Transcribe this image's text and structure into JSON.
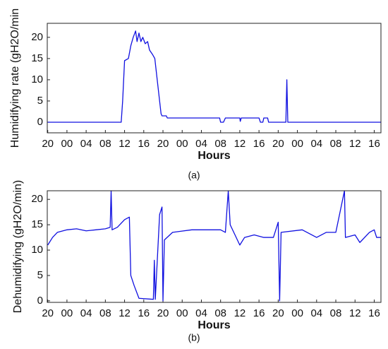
{
  "chart_data": [
    {
      "type": "line",
      "y_label": "Humidifying rate (gH2O/min",
      "x_label": "Hours",
      "caption": "(a)",
      "x": [
        0,
        15.3,
        15.6,
        16,
        16.8,
        17.3,
        17.8,
        18.3,
        18.6,
        19,
        19.4,
        19.8,
        20.3,
        20.8,
        21.2,
        21.8,
        22.3,
        22.6,
        23,
        23.3,
        23.6,
        23.8,
        24.7,
        24.9,
        35.8,
        36,
        36.6,
        37,
        40,
        40.1,
        40.3,
        44,
        44.3,
        44.8,
        45,
        45.8,
        46,
        49.6,
        49.8,
        50,
        69.4
      ],
      "series": [
        {
          "color": "#1010e0",
          "values": [
            0,
            0,
            5,
            14.5,
            15,
            18,
            20,
            21.5,
            19,
            21,
            19,
            20,
            18.5,
            19,
            17,
            16,
            15,
            12,
            8,
            5,
            2,
            1.5,
            1.5,
            1,
            1,
            0,
            0,
            1,
            1,
            0.2,
            1,
            1,
            0,
            0,
            1,
            1,
            0,
            0,
            10,
            0,
            0
          ]
        }
      ],
      "xlim": [
        -0.1,
        69.4
      ],
      "ylim": [
        -2.5,
        23.3
      ],
      "xticks": [
        {
          "value": 0,
          "label": "20"
        },
        {
          "value": 4,
          "label": "00"
        },
        {
          "value": 8,
          "label": "04"
        },
        {
          "value": 12,
          "label": "08"
        },
        {
          "value": 16,
          "label": "12"
        },
        {
          "value": 20,
          "label": "16"
        },
        {
          "value": 24,
          "label": "20"
        },
        {
          "value": 28,
          "label": "00"
        },
        {
          "value": 32,
          "label": "04"
        },
        {
          "value": 36,
          "label": "08"
        },
        {
          "value": 40,
          "label": "12"
        },
        {
          "value": 44,
          "label": "16"
        },
        {
          "value": 48,
          "label": "20"
        },
        {
          "value": 52,
          "label": "00"
        },
        {
          "value": 56,
          "label": "04"
        },
        {
          "value": 60,
          "label": "08"
        },
        {
          "value": 64,
          "label": "12"
        },
        {
          "value": 68,
          "label": "16"
        }
      ],
      "yticks": [
        0,
        5,
        10,
        15,
        20
      ]
    },
    {
      "type": "line",
      "y_label": "Dehumidifying (gH2O/min)",
      "x_label": "Hours",
      "caption": "(b)",
      "x": [
        0,
        1,
        2,
        4,
        6,
        8,
        10,
        12,
        13,
        13.2,
        13.4,
        14.5,
        16,
        17,
        17.3,
        18,
        19,
        22,
        22.2,
        22.4,
        23.3,
        23.8,
        24,
        24.3,
        26,
        30,
        36,
        37,
        37.6,
        38,
        39,
        40,
        41,
        43,
        45,
        47,
        48,
        48.3,
        48.6,
        53,
        56,
        58,
        60,
        61.8,
        62,
        64,
        65,
        67,
        68,
        68.5,
        69.4
      ],
      "series": [
        {
          "color": "#1010e0",
          "values": [
            11,
            12.5,
            13.5,
            14,
            14.2,
            13.8,
            14,
            14.2,
            14.5,
            21.7,
            14,
            14.5,
            16,
            16.5,
            5,
            3,
            0.5,
            0.3,
            8,
            0.3,
            17,
            18.5,
            0,
            12,
            13.5,
            14,
            14,
            13.5,
            21.7,
            15,
            13,
            11,
            12.5,
            13,
            12.5,
            12.5,
            15.5,
            0,
            13.5,
            14,
            12.5,
            13.5,
            13.5,
            21.7,
            12.5,
            13,
            11.5,
            13.5,
            14,
            12.5,
            12.5
          ]
        }
      ],
      "xlim": [
        -0.1,
        69.4
      ],
      "ylim": [
        -0.3,
        21.7
      ],
      "xticks": [
        {
          "value": 0,
          "label": "20"
        },
        {
          "value": 4,
          "label": "00"
        },
        {
          "value": 8,
          "label": "04"
        },
        {
          "value": 12,
          "label": "08"
        },
        {
          "value": 16,
          "label": "12"
        },
        {
          "value": 20,
          "label": "16"
        },
        {
          "value": 24,
          "label": "20"
        },
        {
          "value": 28,
          "label": "00"
        },
        {
          "value": 32,
          "label": "04"
        },
        {
          "value": 36,
          "label": "08"
        },
        {
          "value": 40,
          "label": "12"
        },
        {
          "value": 44,
          "label": "16"
        },
        {
          "value": 48,
          "label": "20"
        },
        {
          "value": 52,
          "label": "00"
        },
        {
          "value": 56,
          "label": "04"
        },
        {
          "value": 60,
          "label": "08"
        },
        {
          "value": 64,
          "label": "12"
        },
        {
          "value": 68,
          "label": "16"
        }
      ],
      "yticks": [
        0,
        5,
        10,
        15,
        20
      ]
    }
  ]
}
